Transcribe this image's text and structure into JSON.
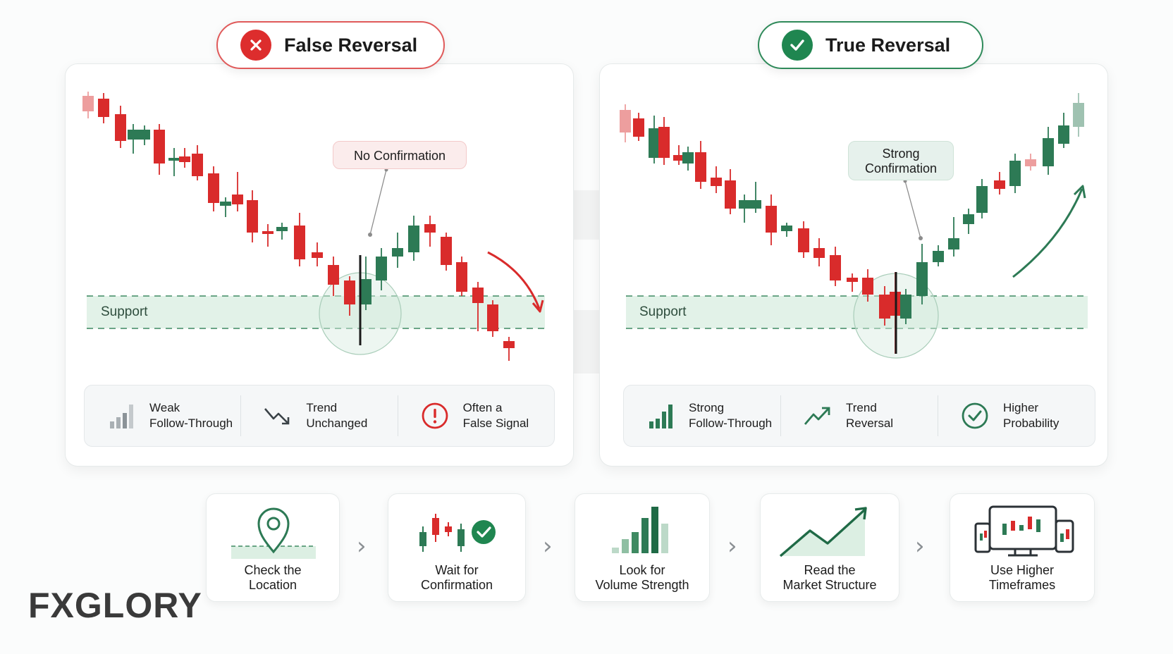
{
  "left_panel": {
    "title": "False Reversal",
    "callout": "No Confirmation",
    "support_label": "Support",
    "features": [
      {
        "icon": "weak-bars-icon",
        "text": "Weak\nFollow-Through"
      },
      {
        "icon": "trend-down-icon",
        "text": "Trend\nUnchanged"
      },
      {
        "icon": "alert-icon",
        "text": "Often a\nFalse Signal"
      }
    ]
  },
  "right_panel": {
    "title": "True Reversal",
    "callout": "Strong\nConfirmation",
    "support_label": "Support",
    "features": [
      {
        "icon": "strong-bars-icon",
        "text": "Strong\nFollow-Through"
      },
      {
        "icon": "trend-up-icon",
        "text": "Trend\nReversal"
      },
      {
        "icon": "check-circle-icon",
        "text": "Higher\nProbability"
      }
    ]
  },
  "steps": [
    {
      "icon": "location-pin-icon",
      "label": "Check the\nLocation"
    },
    {
      "icon": "candles-check-icon",
      "label": "Wait for\nConfirmation"
    },
    {
      "icon": "volume-bars-icon",
      "label": "Look for\nVolume Strength"
    },
    {
      "icon": "market-structure-icon",
      "label": "Read the\nMarket Structure"
    },
    {
      "icon": "devices-icon",
      "label": "Use Higher\nTimeframes"
    }
  ],
  "brand": {
    "logo_text": "FXGLORY"
  },
  "colors": {
    "bearish": "#d92b2b",
    "bullish": "#2d7a55",
    "support_zone": "#dcefe3",
    "accent_orange": "#e8792b"
  }
}
